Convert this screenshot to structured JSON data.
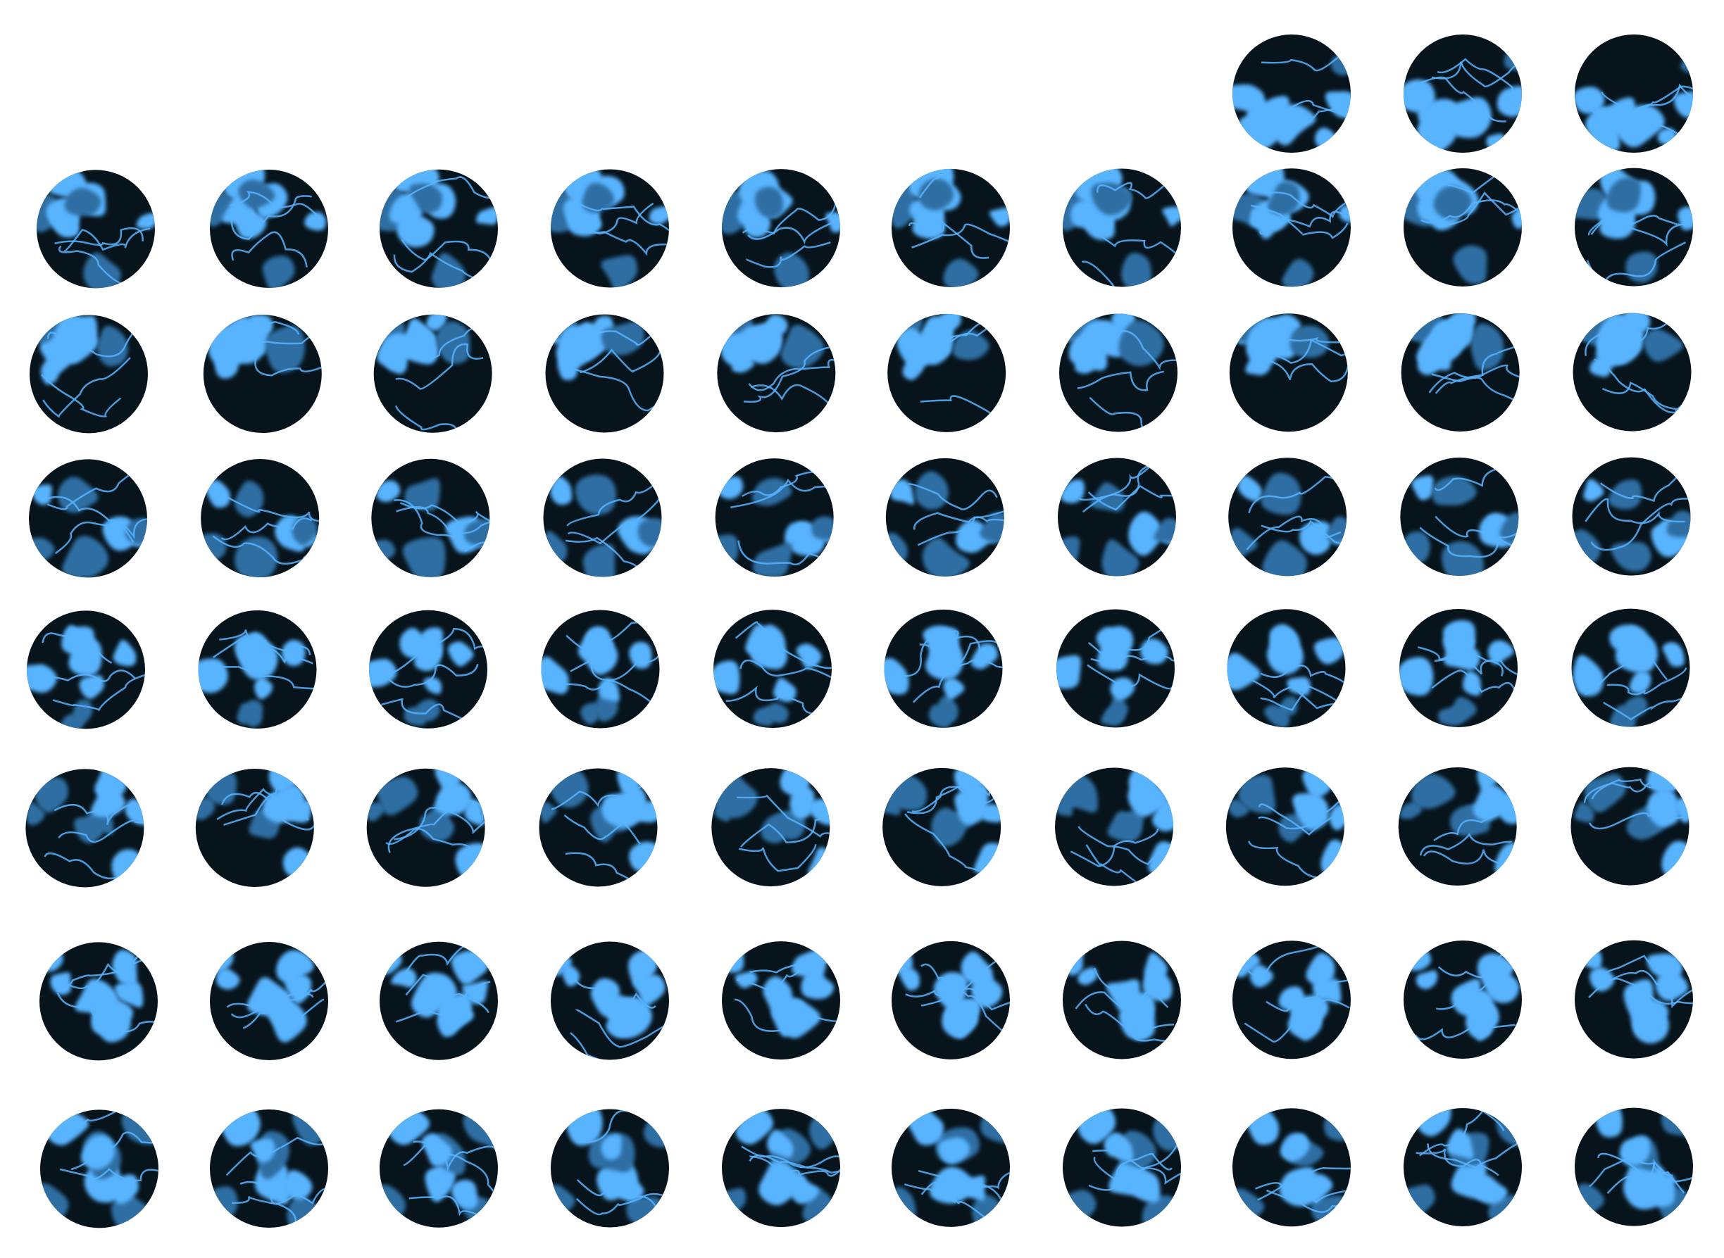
{
  "figure": {
    "kind": "grid of circular simulation frames",
    "rows": 8,
    "columns": 10,
    "frame_count": 73,
    "first_row_frames": 3,
    "first_row_alignment": "right",
    "colors": {
      "background": "#ffffff",
      "disc": "#07141c",
      "pattern": "#58b4ff",
      "pattern_dim": "#2d6ea3"
    }
  }
}
